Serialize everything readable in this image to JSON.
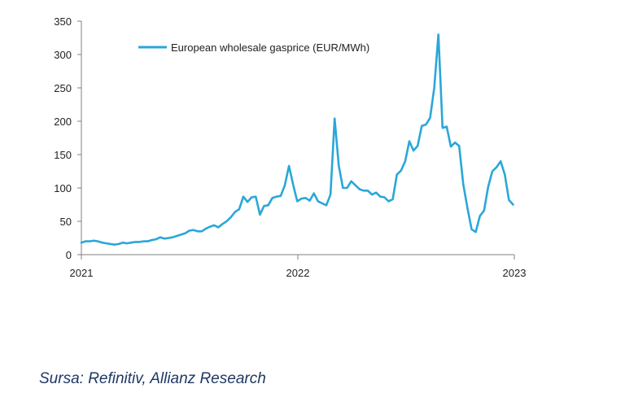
{
  "chart_data": {
    "type": "line",
    "title": "",
    "xlabel": "",
    "ylabel": "",
    "ylim": [
      0,
      350
    ],
    "yticks": [
      0,
      50,
      100,
      150,
      200,
      250,
      300,
      350
    ],
    "xticks": [
      "2021",
      "2022",
      "2023"
    ],
    "xlim": [
      "2021-01-01",
      "2023-01-01"
    ],
    "grid": false,
    "legend": "top-left",
    "series": [
      {
        "name": "European wholesale gasprice (EUR/MWh)",
        "color": "#2aa7d8",
        "x": [
          "2021-01-01",
          "2021-01-08",
          "2021-01-15",
          "2021-01-22",
          "2021-01-29",
          "2021-02-05",
          "2021-02-12",
          "2021-02-19",
          "2021-02-26",
          "2021-03-05",
          "2021-03-12",
          "2021-03-19",
          "2021-03-26",
          "2021-04-02",
          "2021-04-09",
          "2021-04-16",
          "2021-04-23",
          "2021-04-30",
          "2021-05-07",
          "2021-05-14",
          "2021-05-21",
          "2021-05-28",
          "2021-06-04",
          "2021-06-11",
          "2021-06-18",
          "2021-06-25",
          "2021-07-02",
          "2021-07-09",
          "2021-07-16",
          "2021-07-23",
          "2021-07-30",
          "2021-08-06",
          "2021-08-13",
          "2021-08-20",
          "2021-08-27",
          "2021-09-03",
          "2021-09-10",
          "2021-09-17",
          "2021-09-24",
          "2021-10-01",
          "2021-10-08",
          "2021-10-15",
          "2021-10-22",
          "2021-10-29",
          "2021-11-05",
          "2021-11-12",
          "2021-11-19",
          "2021-11-26",
          "2021-12-03",
          "2021-12-10",
          "2021-12-17",
          "2021-12-24",
          "2021-12-31",
          "2022-01-07",
          "2022-01-14",
          "2022-01-21",
          "2022-01-28",
          "2022-02-04",
          "2022-02-11",
          "2022-02-18",
          "2022-02-25",
          "2022-03-04",
          "2022-03-11",
          "2022-03-18",
          "2022-03-25",
          "2022-04-01",
          "2022-04-08",
          "2022-04-15",
          "2022-04-22",
          "2022-04-29",
          "2022-05-06",
          "2022-05-13",
          "2022-05-20",
          "2022-05-27",
          "2022-06-03",
          "2022-06-10",
          "2022-06-17",
          "2022-06-24",
          "2022-07-01",
          "2022-07-08",
          "2022-07-15",
          "2022-07-22",
          "2022-07-29",
          "2022-08-05",
          "2022-08-12",
          "2022-08-19",
          "2022-08-26",
          "2022-09-02",
          "2022-09-09",
          "2022-09-16",
          "2022-09-23",
          "2022-09-30",
          "2022-10-07",
          "2022-10-14",
          "2022-10-21",
          "2022-10-28",
          "2022-11-04",
          "2022-11-11",
          "2022-11-18",
          "2022-11-25",
          "2022-12-02",
          "2022-12-09",
          "2022-12-16",
          "2022-12-23",
          "2022-12-30"
        ],
        "values": [
          18,
          20,
          20,
          21,
          20,
          18,
          17,
          16,
          15,
          16,
          18,
          17,
          18,
          19,
          19,
          20,
          20,
          22,
          23,
          26,
          24,
          25,
          26,
          28,
          30,
          32,
          36,
          37,
          35,
          35,
          39,
          42,
          44,
          41,
          46,
          50,
          56,
          64,
          68,
          87,
          79,
          86,
          87,
          60,
          73,
          74,
          85,
          87,
          88,
          104,
          133,
          105,
          80,
          84,
          85,
          81,
          92,
          80,
          77,
          74,
          90,
          204,
          133,
          100,
          100,
          110,
          104,
          98,
          96,
          96,
          90,
          93,
          87,
          86,
          80,
          83,
          120,
          126,
          140,
          170,
          156,
          163,
          193,
          195,
          205,
          250,
          330,
          190,
          192,
          162,
          168,
          163,
          105,
          70,
          38,
          34,
          58,
          66,
          102,
          125,
          131,
          140,
          120,
          82,
          75
        ]
      }
    ]
  },
  "legend": {
    "label": "European wholesale gasprice (EUR/MWh)"
  },
  "source": "Sursa: Refinitiv, Allianz Research"
}
